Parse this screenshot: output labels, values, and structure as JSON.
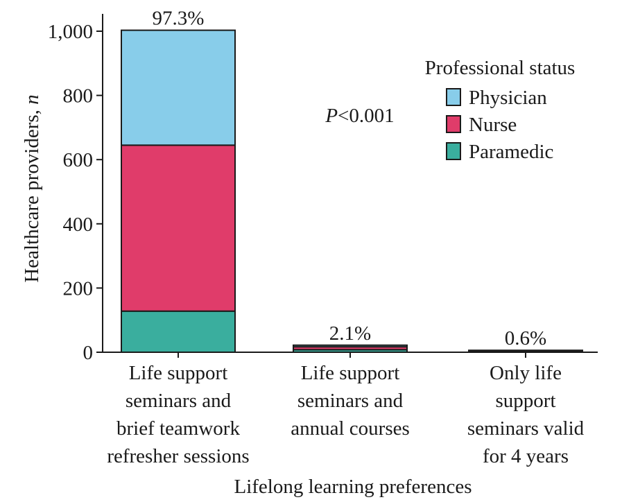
{
  "chart_data": {
    "type": "bar",
    "stacked": true,
    "categories": [
      [
        "Life support",
        "seminars and",
        "brief teamwork",
        "refresher sessions"
      ],
      [
        "Life support",
        "seminars and",
        "annual courses"
      ],
      [
        "Only life",
        "support",
        "seminars valid",
        "for 4 years"
      ]
    ],
    "series": [
      {
        "name": "Paramedic",
        "color": "#3aae9e",
        "values": [
          128,
          8,
          2
        ]
      },
      {
        "name": "Nurse",
        "color": "#e03c6a",
        "values": [
          517,
          9,
          2
        ]
      },
      {
        "name": "Physician",
        "color": "#88cdea",
        "values": [
          358,
          5,
          2
        ]
      }
    ],
    "percent_labels": [
      "97.3%",
      "2.1%",
      "0.6%"
    ],
    "ylabel": "Healthcare providers,",
    "ylabel_italic": "n",
    "xlabel": "Lifelong learning preferences",
    "ylim": [
      0,
      1000
    ],
    "yticks": [
      0,
      200,
      400,
      600,
      800,
      1000
    ],
    "ytick_labels": [
      "0",
      "200",
      "400",
      "600",
      "800",
      "1,000"
    ],
    "legend": {
      "title": "Professional status",
      "placement": "top-right",
      "order": [
        "Physician",
        "Nurse",
        "Paramedic"
      ]
    },
    "annotation": {
      "italic": "P",
      "text": "<0.001"
    },
    "grid": false
  }
}
